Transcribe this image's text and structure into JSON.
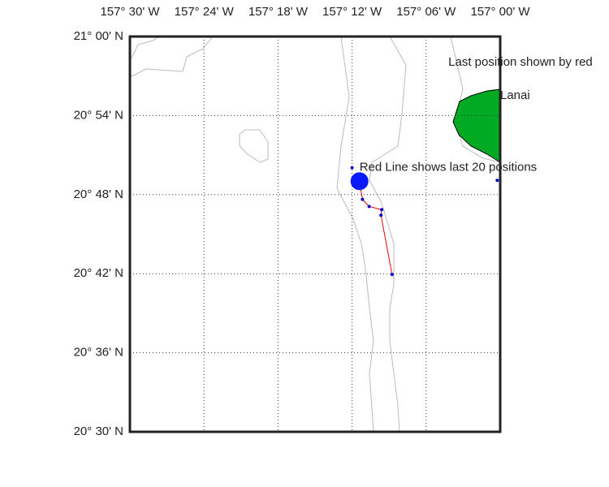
{
  "map": {
    "xaxis": {
      "lim": [
        -157.5,
        -157.0
      ],
      "ticks": [
        {
          "value": -157.5,
          "label": "157° 30' W"
        },
        {
          "value": -157.4,
          "label": "157° 24' W"
        },
        {
          "value": -157.3,
          "label": "157° 18' W"
        },
        {
          "value": -157.2,
          "label": "157° 12' W"
        },
        {
          "value": -157.1,
          "label": "157° 06' W"
        },
        {
          "value": -157.0,
          "label": "157° 00' W"
        }
      ]
    },
    "yaxis": {
      "lim": [
        20.5,
        21.0
      ],
      "ticks": [
        {
          "value": 21.0,
          "label": "21° 00' N"
        },
        {
          "value": 20.9,
          "label": "20° 54' N"
        },
        {
          "value": 20.8,
          "label": "20° 48' N"
        },
        {
          "value": 20.7,
          "label": "20° 42' N"
        },
        {
          "value": 20.6,
          "label": "20° 36' N"
        },
        {
          "value": 20.5,
          "label": "20° 30' N"
        }
      ]
    },
    "annotations": [
      {
        "text": "Last position shown by red",
        "lon": -157.07,
        "lat": 20.967
      },
      {
        "text": "Lanai",
        "lon": -157.0,
        "lat": 20.925
      },
      {
        "text": "Red Line shows last 20 positions",
        "lon": -157.19,
        "lat": 20.834
      }
    ],
    "last_position": {
      "lon": -157.19,
      "lat": 20.817
    },
    "track": {
      "lon": [
        -157.19,
        -157.186,
        -157.177,
        -157.16,
        -157.161,
        -157.146
      ],
      "lat": [
        20.817,
        20.794,
        20.785,
        20.781,
        20.774,
        20.699
      ]
    },
    "other_points": {
      "lon": [
        -157.2,
        -157.004
      ],
      "lat": [
        20.834,
        20.818
      ]
    }
  }
}
